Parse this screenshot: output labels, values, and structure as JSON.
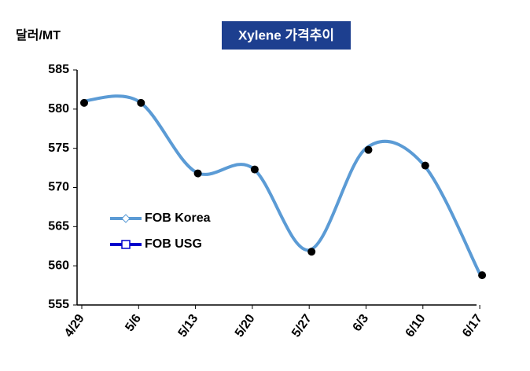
{
  "chart_data": {
    "type": "line",
    "title": "Xylene 가격추이",
    "y_label": "달러/MT",
    "categories": [
      "4/29",
      "5/6",
      "5/13",
      "5/20",
      "5/27",
      "6/3",
      "6/10",
      "6/17"
    ],
    "series": [
      {
        "name": "FOB Korea",
        "color": "#5b9bd5",
        "marker_color": "#000000",
        "values": [
          581,
          581,
          572,
          572.5,
          562,
          575,
          573,
          559
        ]
      },
      {
        "name": "FOB USG",
        "color": "#0000cc",
        "values": [
          null,
          null,
          null,
          null,
          null,
          null,
          null,
          null
        ]
      }
    ],
    "ylim": [
      555,
      585
    ],
    "yticks": [
      555,
      560,
      565,
      570,
      575,
      580,
      585
    ],
    "grid": false,
    "legend": "center-left",
    "smooth": true
  }
}
